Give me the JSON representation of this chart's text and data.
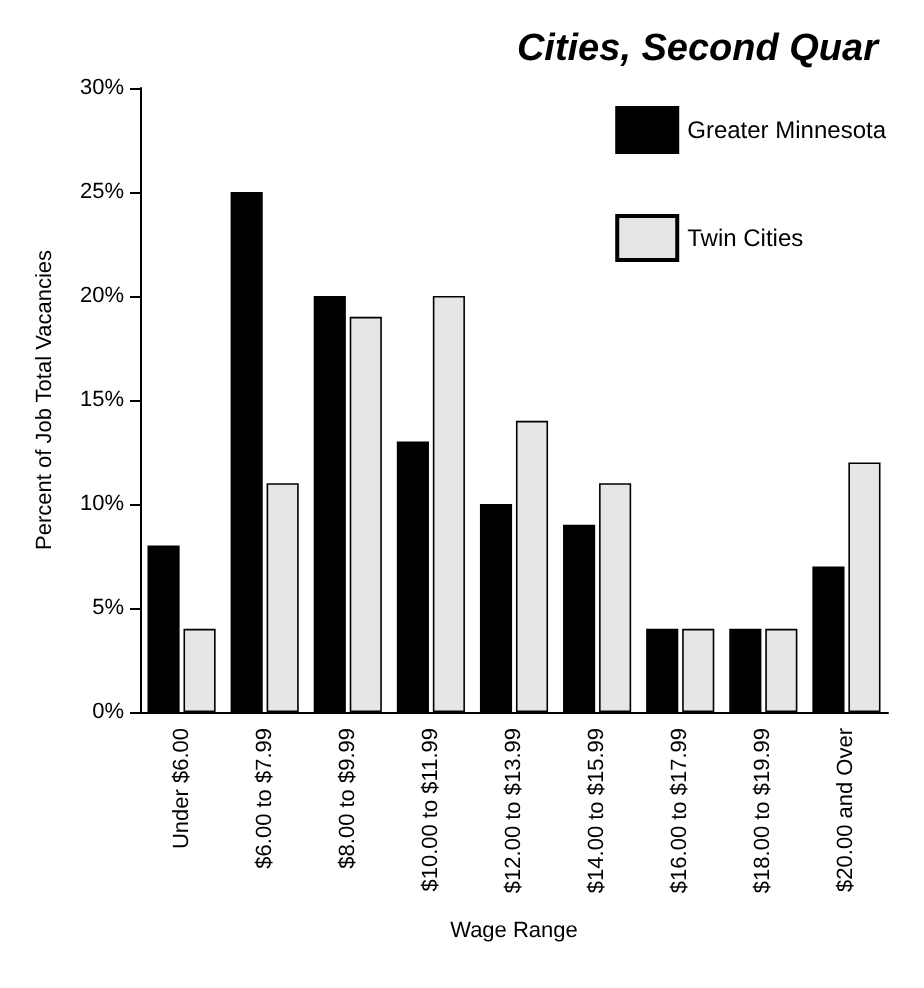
{
  "chart_data": {
    "type": "bar",
    "title": "Cities, Second Quar",
    "xlabel": "Wage Range",
    "ylabel": "Percent of Job Total Vacancies",
    "categories": [
      "Under $6.00",
      "$6.00 to $7.99",
      "$8.00 to $9.99",
      "$10.00 to $11.99",
      "$12.00 to $13.99",
      "$14.00 to $15.99",
      "$16.00 to $17.99",
      "$18.00 to $19.99",
      "$20.00 and Over"
    ],
    "series": [
      {
        "name": "Greater Minnesota",
        "color": "#000000",
        "values": [
          8,
          25,
          20,
          13,
          10,
          9,
          4,
          4,
          7
        ]
      },
      {
        "name": "Twin Cities",
        "color": "#e6e6e6",
        "values": [
          4,
          11,
          19,
          20,
          14,
          11,
          4,
          4,
          12
        ]
      }
    ],
    "ylim": [
      0,
      30
    ],
    "yticks": [
      {
        "value": 0,
        "label": "0%"
      },
      {
        "value": 5,
        "label": "5%"
      },
      {
        "value": 10,
        "label": "10%"
      },
      {
        "value": 15,
        "label": "15%"
      },
      {
        "value": 20,
        "label": "20%"
      },
      {
        "value": 25,
        "label": "25%"
      },
      {
        "value": 30,
        "label": "30%"
      }
    ],
    "grid": false,
    "legend": "top right"
  }
}
